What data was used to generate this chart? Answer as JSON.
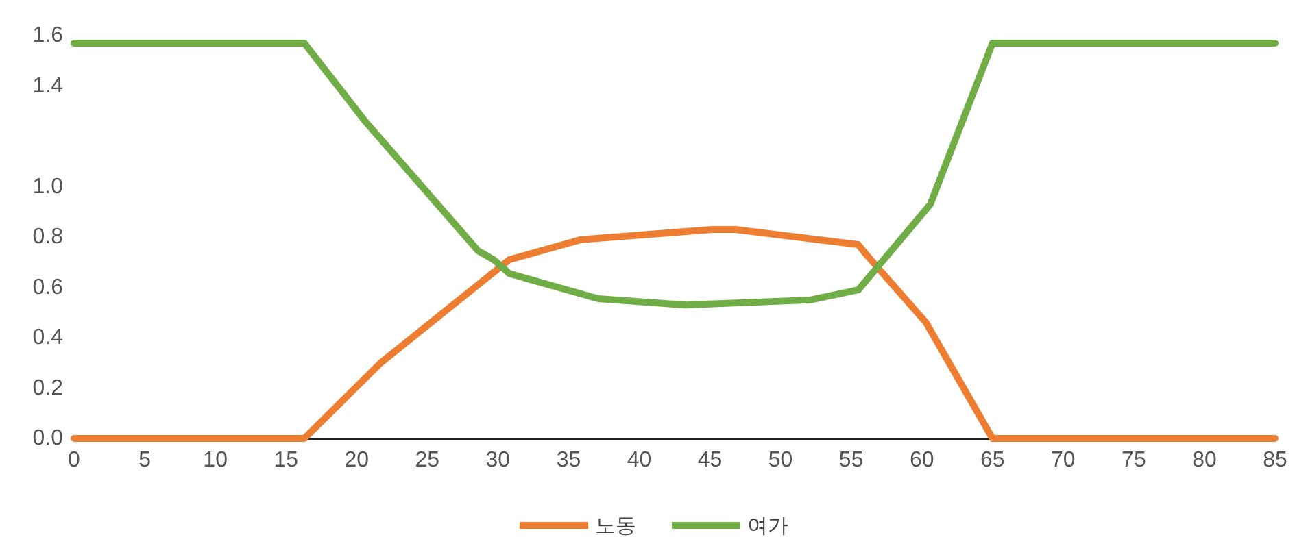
{
  "chart_data": {
    "type": "line",
    "xlim": [
      0,
      85
    ],
    "xticks": [
      0,
      5,
      10,
      15,
      20,
      25,
      30,
      35,
      40,
      45,
      50,
      55,
      60,
      65,
      70,
      75,
      80,
      85
    ],
    "ylim": [
      0,
      1.6
    ],
    "yticks": [
      {
        "value": 0,
        "label": "0.0"
      },
      0.2,
      0.4,
      0.6,
      0.8,
      {
        "value": 1.0,
        "label": "1.0"
      },
      1.4,
      1.6
    ],
    "grid": false,
    "legend": "bottom",
    "marker": "none",
    "line_style": "solid",
    "series": [
      {
        "name": "노동",
        "color": "#ed7d31",
        "x": [
          0,
          16.3,
          21.7,
          30.8,
          35.9,
          45.2,
          46.8,
          55.5,
          56,
          60.3,
          65,
          85
        ],
        "values": [
          0,
          0,
          0.3,
          0.71,
          0.79,
          0.83,
          0.83,
          0.77,
          0.735,
          0.46,
          0,
          0
        ]
      },
      {
        "name": "여가",
        "color": "#70ad47",
        "x": [
          0,
          16.3,
          20.6,
          28.6,
          29.7,
          30.8,
          37.1,
          43.3,
          52.1,
          55.5,
          60.6,
          65,
          85
        ],
        "values": [
          1.57,
          1.57,
          1.26,
          0.745,
          0.71,
          0.655,
          0.555,
          0.53,
          0.55,
          0.59,
          0.93,
          1.57,
          1.57
        ]
      }
    ]
  }
}
